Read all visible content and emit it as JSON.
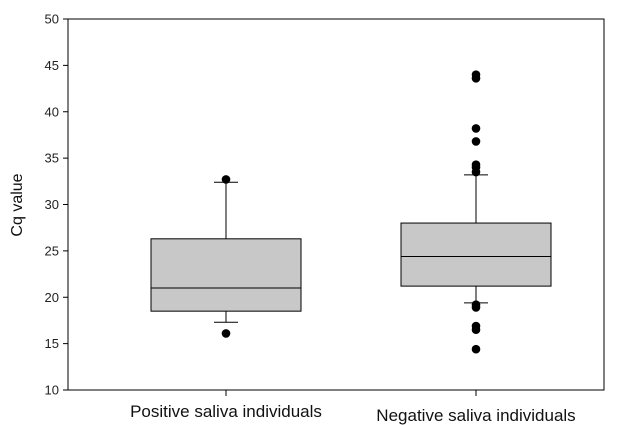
{
  "chart_data": {
    "type": "box",
    "ylabel": "Cq value",
    "ylim": [
      10,
      50
    ],
    "yticks": [
      10,
      15,
      20,
      25,
      30,
      35,
      40,
      45,
      50
    ],
    "grid": false,
    "legend": "none",
    "colors": {
      "box_fill": "#c8c8c8",
      "stroke": "#000000",
      "outlier": "#000000"
    },
    "categories": [
      "Positive saliva individuals",
      "Negative saliva individuals"
    ],
    "boxes": [
      {
        "category": "Positive saliva individuals",
        "whisker_low": 17.3,
        "q1": 18.5,
        "median": 21.0,
        "q3": 26.3,
        "whisker_high": 32.4,
        "outliers": [
          16.1,
          32.7
        ]
      },
      {
        "category": "Negative saliva individuals",
        "whisker_low": 19.4,
        "q1": 21.2,
        "median": 24.4,
        "q3": 28.0,
        "whisker_high": 33.2,
        "outliers": [
          14.4,
          16.5,
          16.9,
          18.9,
          19.2,
          33.5,
          34.0,
          34.3,
          36.8,
          38.2,
          43.6,
          44.0
        ]
      }
    ]
  }
}
